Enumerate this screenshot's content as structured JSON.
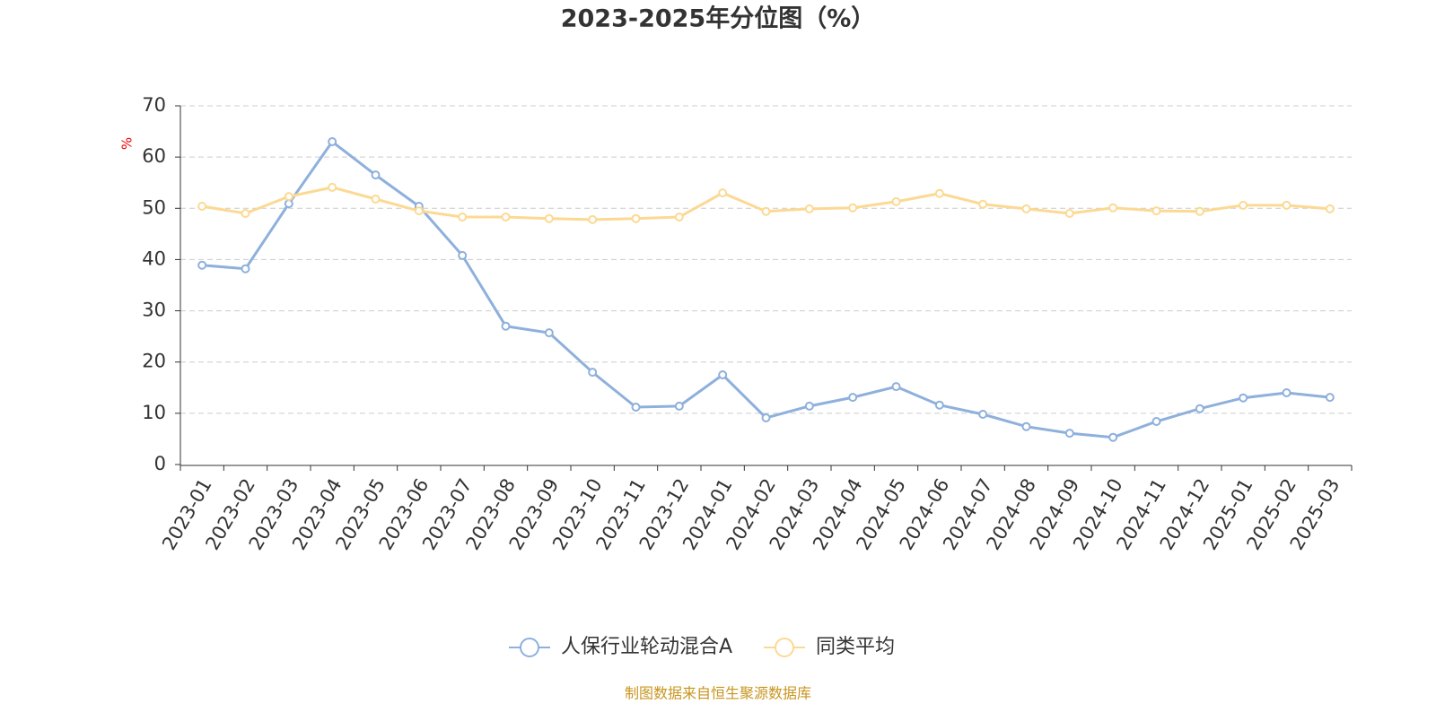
{
  "chart_data": {
    "type": "line",
    "title": "2023-2025年分位图（%）",
    "y_label": "%",
    "source": "制图数据来自恒生聚源数据库",
    "categories": [
      "2023-01",
      "2023-02",
      "2023-03",
      "2023-04",
      "2023-05",
      "2023-06",
      "2023-07",
      "2023-08",
      "2023-09",
      "2023-10",
      "2023-11",
      "2023-12",
      "2024-01",
      "2024-02",
      "2024-03",
      "2024-04",
      "2024-05",
      "2024-06",
      "2024-07",
      "2024-08",
      "2024-09",
      "2024-10",
      "2024-11",
      "2024-12",
      "2025-01",
      "2025-02",
      "2025-03"
    ],
    "series": [
      {
        "name": "人保行业轮动混合A",
        "color": "#8eb0dc",
        "values": [
          38.9,
          38.2,
          50.9,
          63.0,
          56.5,
          50.4,
          40.8,
          27.0,
          25.7,
          18.0,
          11.2,
          11.4,
          17.5,
          9.1,
          11.4,
          13.1,
          15.2,
          11.6,
          9.8,
          7.4,
          6.1,
          5.3,
          8.4,
          10.9,
          13.0,
          14.0,
          13.1
        ]
      },
      {
        "name": "同类平均",
        "color": "#fcd993",
        "values": [
          50.4,
          49.0,
          52.3,
          54.1,
          51.8,
          49.5,
          48.3,
          48.3,
          48.0,
          47.8,
          48.0,
          48.3,
          53.0,
          49.4,
          49.9,
          50.1,
          51.3,
          52.9,
          50.8,
          49.9,
          49.0,
          50.1,
          49.5,
          49.4,
          50.6,
          50.6,
          49.9
        ]
      }
    ],
    "ylim": [
      0,
      70
    ],
    "yticks": [
      0,
      10,
      20,
      30,
      40,
      50,
      60,
      70
    ],
    "grid": true
  }
}
